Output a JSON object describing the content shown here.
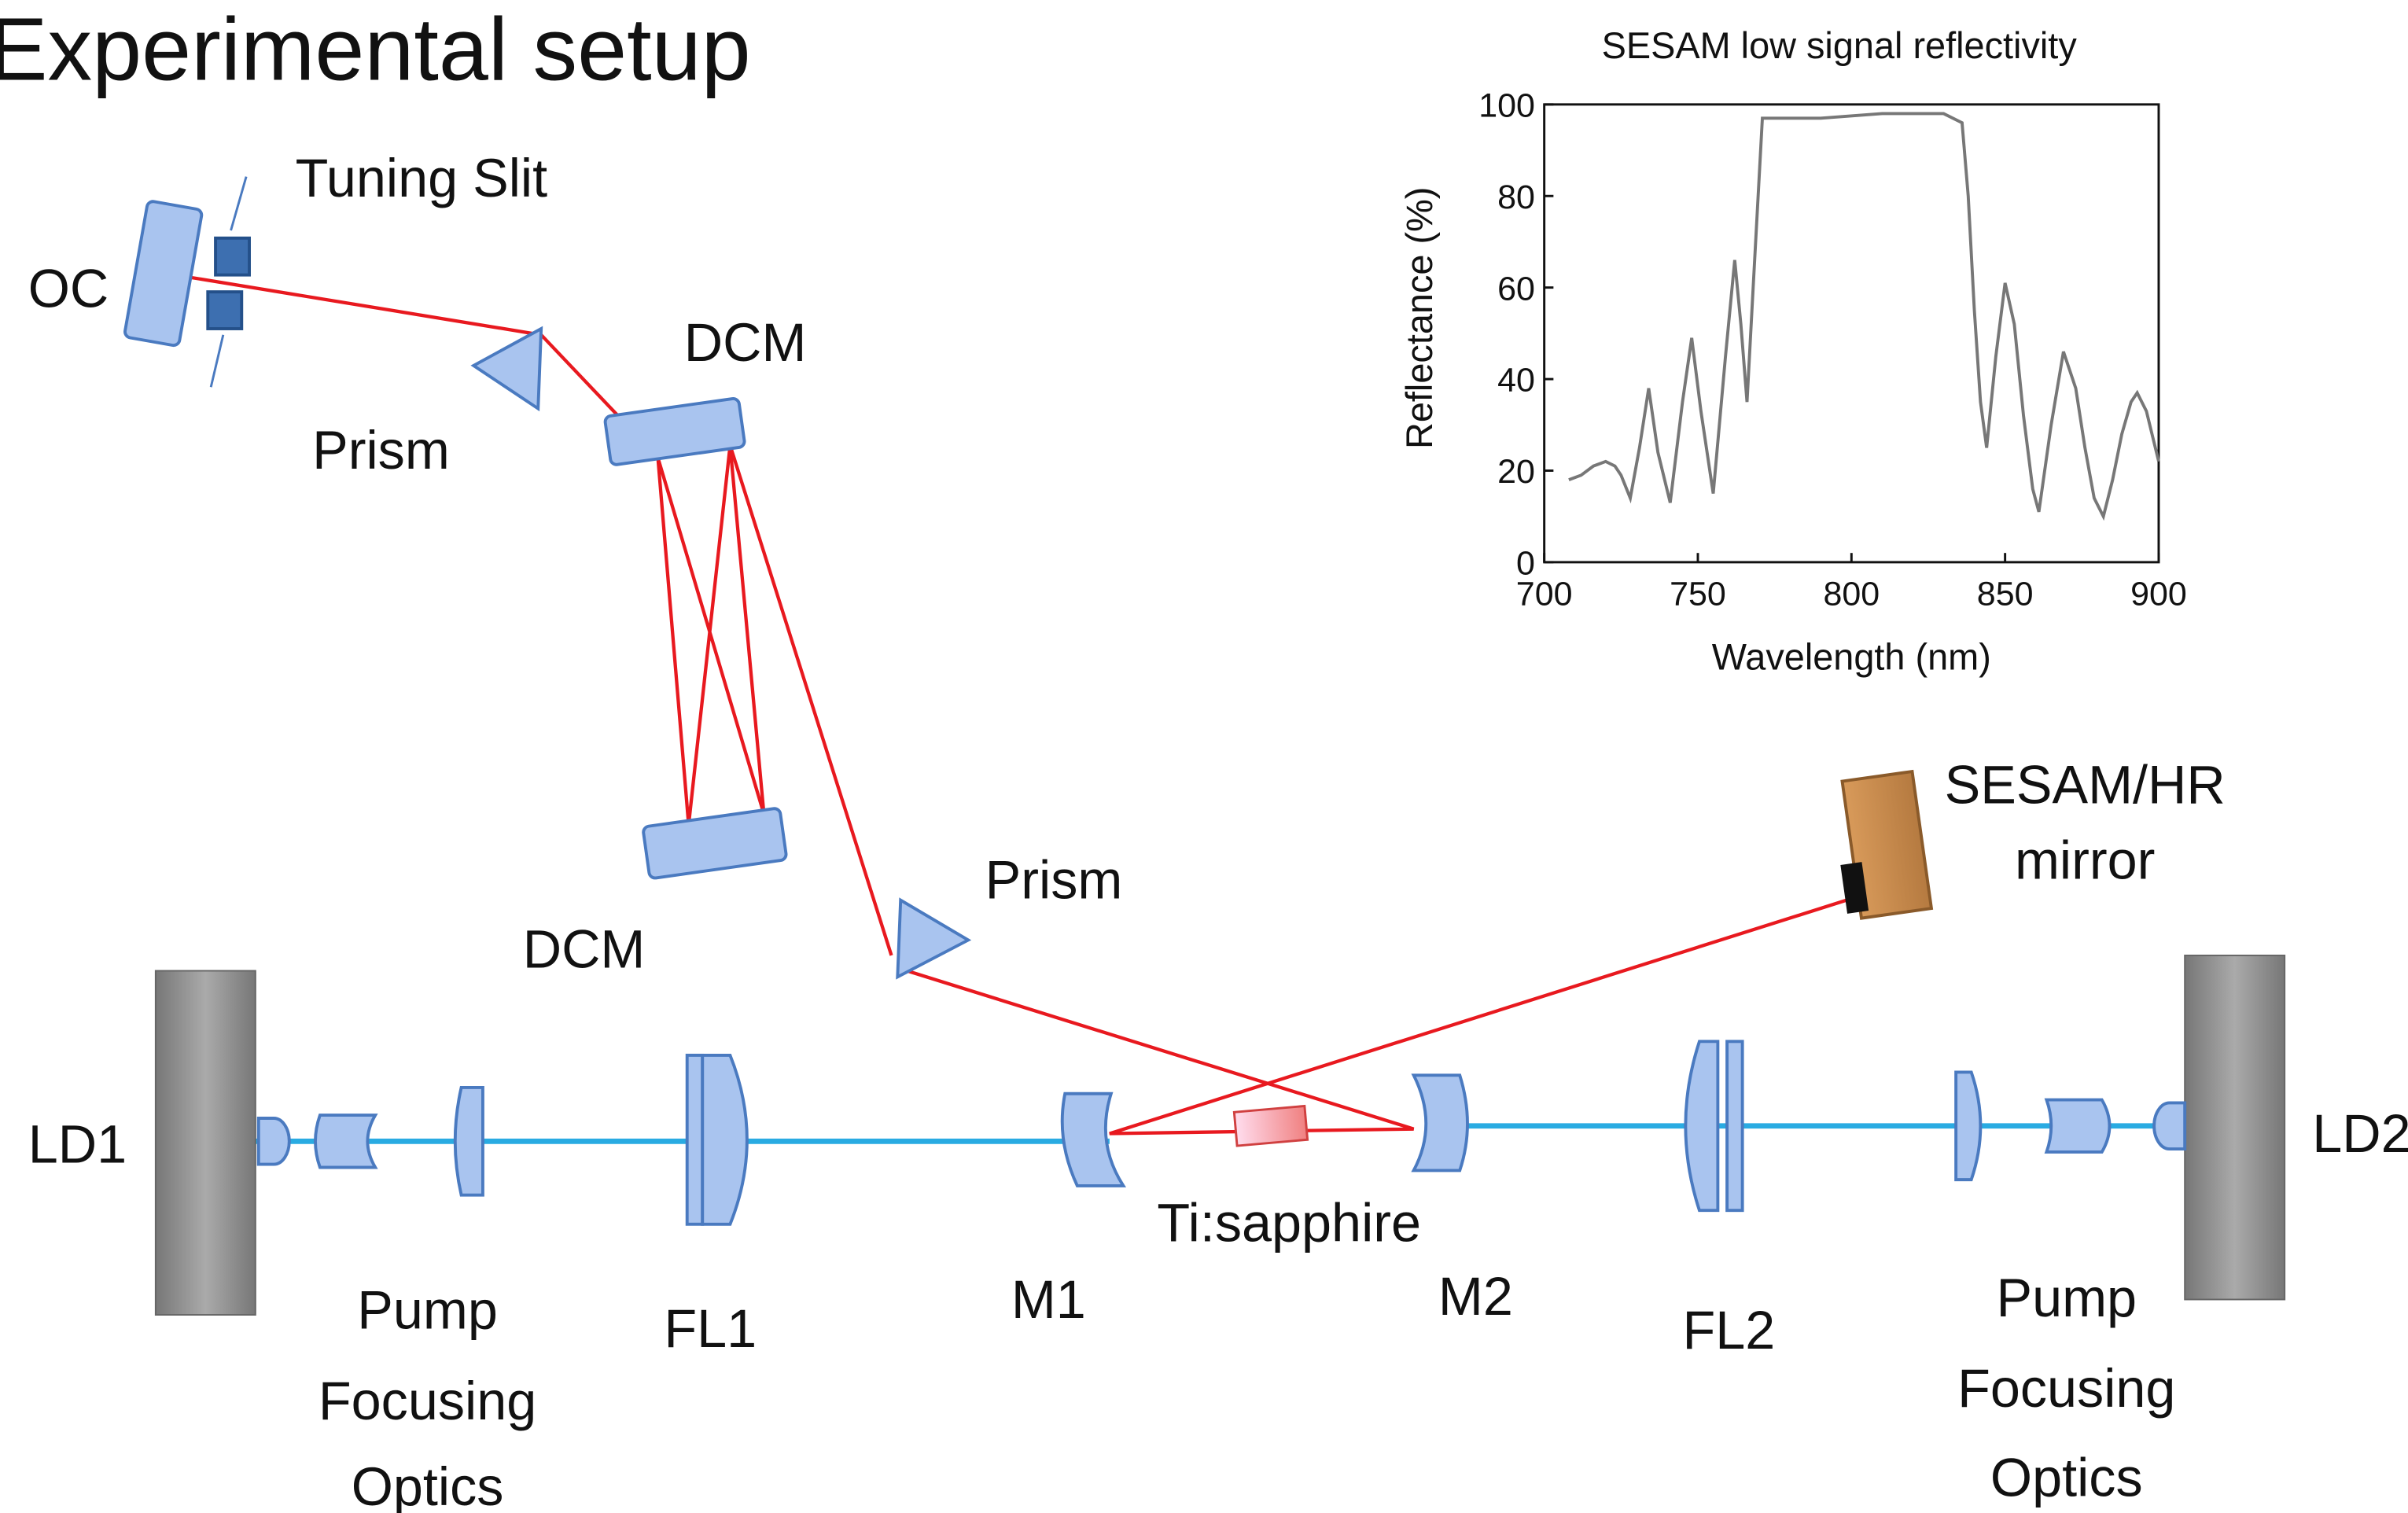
{
  "title": "Experimental setup",
  "labels": [
    [
      "Tuning Slit"
    ],
    [
      "OC"
    ],
    [
      "Prism"
    ],
    [
      "DCM"
    ],
    [
      "DCM"
    ],
    [
      "Prism"
    ],
    [
      "SESAM/HR",
      "mirror"
    ],
    [
      "LD1"
    ],
    [
      "LD2"
    ],
    [
      "Pump",
      "Focusing",
      "Optics"
    ],
    [
      "FL1"
    ],
    [
      "M1"
    ],
    [
      "Ti:sapphire"
    ],
    [
      "M2"
    ],
    [
      "FL2"
    ],
    [
      "Pump",
      "Focusing",
      "Optics"
    ]
  ],
  "chart_data": {
    "type": "line",
    "title": "SESAM low signal reflectivity",
    "x_label": "Wavelength (nm)",
    "y_label": "Reflectance (%)",
    "xlim": [
      700,
      900
    ],
    "ylim": [
      0,
      100
    ],
    "xticks": [
      700,
      750,
      800,
      850,
      900
    ],
    "yticks": [
      0,
      20,
      40,
      60,
      80,
      100
    ],
    "series": [
      {
        "color": "#777777",
        "x": [
          708,
          712,
          716,
          720,
          723,
          725,
          728,
          731,
          734,
          737,
          741,
          745,
          748,
          751,
          755,
          759,
          762,
          764,
          766,
          768,
          771,
          775,
          790,
          810,
          830,
          836,
          838,
          840,
          842,
          844,
          847,
          850,
          853,
          856,
          859,
          861,
          865,
          869,
          873,
          876,
          879,
          882,
          885,
          888,
          891,
          893,
          896,
          900
        ],
        "values": [
          18,
          19,
          21,
          22,
          21,
          19,
          14,
          25,
          38,
          24,
          13,
          35,
          49,
          33,
          15,
          45,
          66,
          52,
          35,
          60,
          97,
          97,
          97,
          98,
          98,
          96,
          80,
          55,
          35,
          25,
          45,
          61,
          52,
          32,
          16,
          11,
          30,
          46,
          38,
          25,
          14,
          10,
          18,
          28,
          35,
          37,
          33,
          22
        ]
      }
    ]
  }
}
